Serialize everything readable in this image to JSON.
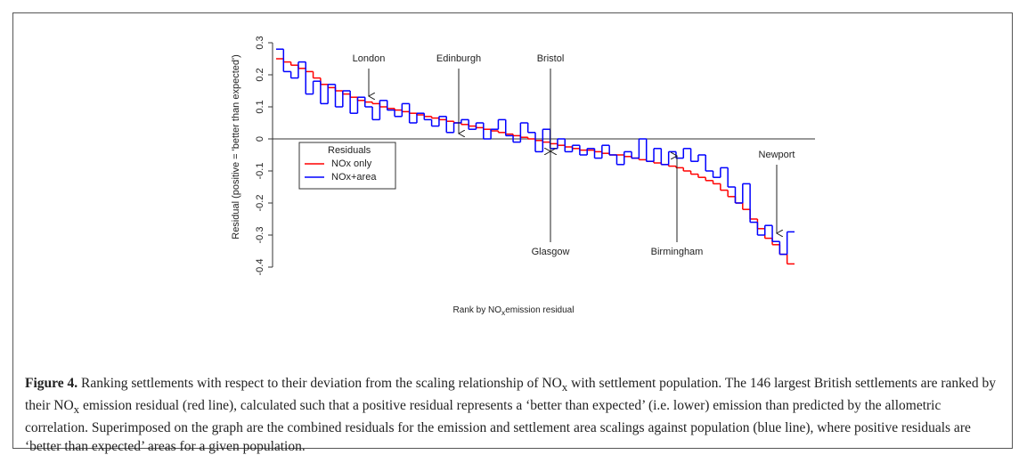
{
  "chart_data": {
    "type": "line",
    "step": true,
    "y_label": "Residual (positive = 'better than expected')",
    "x_label": [
      "Rank by NO",
      "x",
      "emission residual"
    ],
    "ylim": [
      -0.4,
      0.3
    ],
    "yticks": [
      -0.4,
      -0.3,
      -0.2,
      -0.1,
      0.0,
      0.1,
      0.2,
      0.3
    ],
    "legend": "left",
    "legend_title": "Residuals",
    "series": [
      {
        "name": "NOx only",
        "color": "#ff0000",
        "values": [
          0.25,
          0.24,
          0.23,
          0.22,
          0.21,
          0.19,
          0.17,
          0.16,
          0.15,
          0.14,
          0.13,
          0.12,
          0.115,
          0.11,
          0.1,
          0.095,
          0.09,
          0.085,
          0.08,
          0.075,
          0.07,
          0.065,
          0.06,
          0.055,
          0.05,
          0.045,
          0.04,
          0.035,
          0.03,
          0.025,
          0.02,
          0.015,
          0.01,
          0.005,
          0,
          -0.005,
          -0.01,
          -0.015,
          -0.02,
          -0.025,
          -0.03,
          -0.035,
          -0.035,
          -0.04,
          -0.045,
          -0.05,
          -0.05,
          -0.055,
          -0.06,
          -0.065,
          -0.07,
          -0.075,
          -0.08,
          -0.085,
          -0.09,
          -0.1,
          -0.11,
          -0.12,
          -0.13,
          -0.14,
          -0.16,
          -0.18,
          -0.2,
          -0.22,
          -0.25,
          -0.28,
          -0.31,
          -0.33,
          -0.36,
          -0.39
        ]
      },
      {
        "name": "NOx+area",
        "color": "#0000ff",
        "values": [
          0.28,
          0.21,
          0.19,
          0.24,
          0.14,
          0.18,
          0.11,
          0.17,
          0.1,
          0.15,
          0.08,
          0.13,
          0.1,
          0.06,
          0.12,
          0.09,
          0.07,
          0.11,
          0.05,
          0.08,
          0.06,
          0.04,
          0.07,
          0.02,
          0.05,
          0.06,
          0.03,
          0.05,
          0.0,
          0.03,
          0.06,
          0.01,
          -0.01,
          0.05,
          0.02,
          -0.04,
          0.03,
          -0.03,
          0.0,
          -0.04,
          -0.02,
          -0.05,
          -0.03,
          -0.06,
          -0.02,
          -0.05,
          -0.08,
          -0.04,
          -0.06,
          0.0,
          -0.07,
          -0.03,
          -0.08,
          -0.04,
          -0.06,
          -0.03,
          -0.07,
          -0.05,
          -0.1,
          -0.12,
          -0.09,
          -0.15,
          -0.2,
          -0.14,
          -0.26,
          -0.3,
          -0.27,
          -0.32,
          -0.36,
          -0.29
        ]
      }
    ],
    "annotations": [
      "London",
      "Edinburgh",
      "Bristol",
      "Glasgow",
      "Birmingham",
      "Newport"
    ]
  },
  "caption": {
    "label": "Figure 4.",
    "runs": [
      " Ranking settlements with respect to their deviation from the scaling relationship of NO",
      "x",
      " with settlement population. The 146 largest British settlements are ranked by their NO",
      "x",
      " emission residual (red line), calculated such that a positive residual represents a ‘better than expected’ (i.e. lower) emission than predicted by the allometric correlation. Superimposed on the graph are the combined residuals for the emission and settlement area scalings against population (blue line), where positive residuals are ‘better than expected’ areas for a given population."
    ]
  }
}
